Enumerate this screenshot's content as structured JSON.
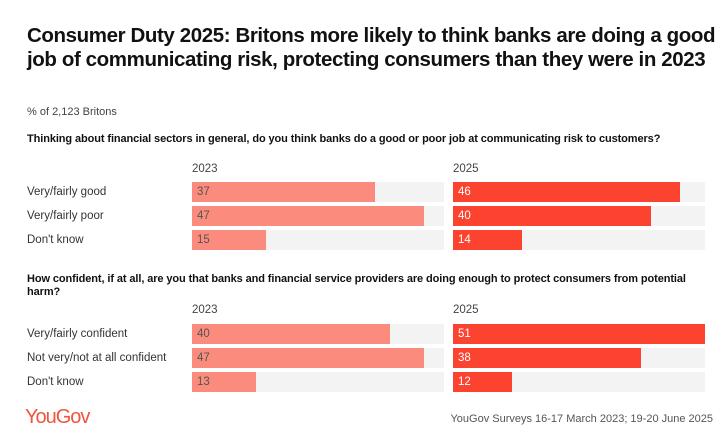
{
  "title": "Consumer Duty 2025: Britons more likely to think banks are doing a good job of communicating risk, protecting consumers than they were in 2023",
  "subtitle": "% of 2,123 Britons",
  "source": "YouGov Surveys 16-17 March 2023; 19-20 June 2025",
  "logo": "YouGov",
  "colors": {
    "2023": "#fb8b7d",
    "2025": "#fc4330",
    "track": "#f3f3f3"
  },
  "chart_data": [
    {
      "type": "bar",
      "orientation": "horizontal",
      "title": "Thinking about financial sectors in general, do you think banks do a good or poor job at communicating risk to customers?",
      "categories": [
        "Very/fairly good",
        "Very/fairly poor",
        "Don't know"
      ],
      "series": [
        {
          "name": "2023",
          "values": [
            37,
            47,
            15
          ]
        },
        {
          "name": "2025",
          "values": [
            46,
            40,
            14
          ]
        }
      ],
      "xlim": [
        0,
        51
      ]
    },
    {
      "type": "bar",
      "orientation": "horizontal",
      "title": "How confident, if at all, are you that banks and financial service providers are doing enough to protect consumers from potential harm?",
      "categories": [
        "Very/fairly confident",
        "Not very/not at all confident",
        "Don't know"
      ],
      "series": [
        {
          "name": "2023",
          "values": [
            40,
            47,
            13
          ]
        },
        {
          "name": "2025",
          "values": [
            51,
            38,
            12
          ]
        }
      ],
      "xlim": [
        0,
        51
      ]
    }
  ]
}
